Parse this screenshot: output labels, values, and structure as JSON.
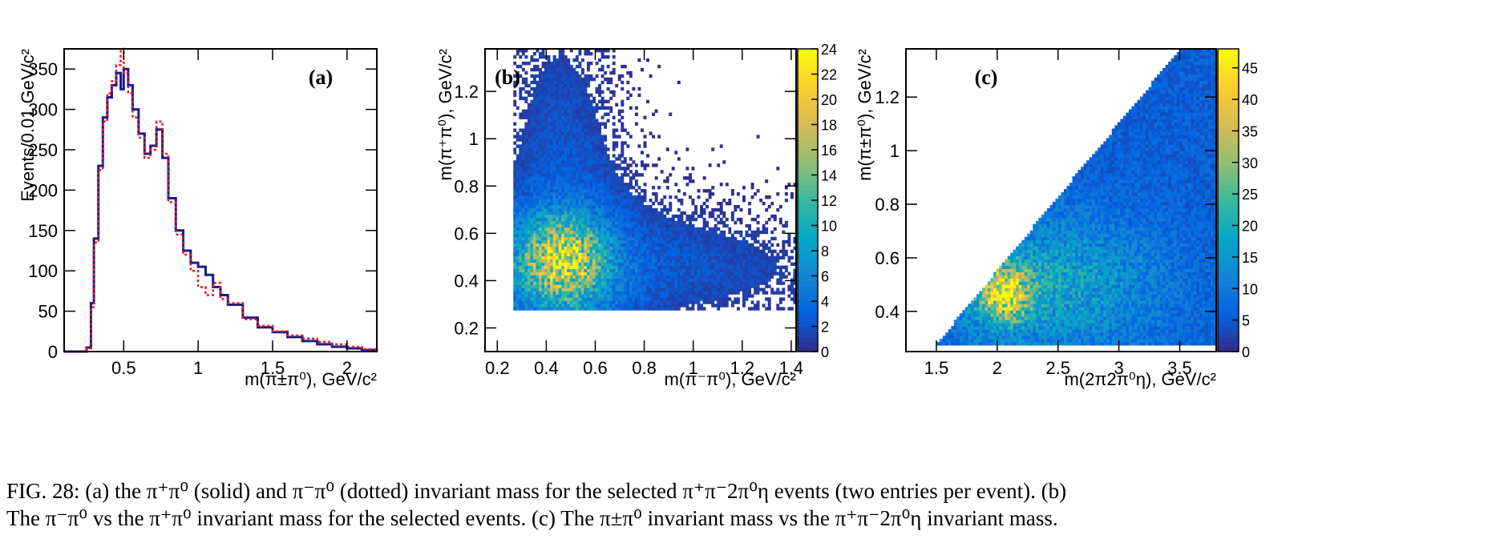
{
  "chart_data": [
    {
      "type": "line",
      "panel_label": "(a)",
      "ylabel": "Events/0.01 GeV/c²",
      "xlabel": "m(π±π⁰), GeV/c²",
      "xlim": [
        0.1,
        2.2
      ],
      "ylim": [
        0,
        375
      ],
      "xticks": [
        0.5,
        1,
        1.5,
        2
      ],
      "xtick_labels": [
        "0.5",
        "1",
        "1.5",
        "2"
      ],
      "yticks": [
        0,
        50,
        100,
        150,
        200,
        250,
        300,
        350
      ],
      "ytick_labels": [
        "0",
        "50",
        "100",
        "150",
        "200",
        "250",
        "300",
        "350"
      ],
      "series": [
        {
          "color": "#1a1a8c",
          "style": "solid step",
          "x": [
            0.1,
            0.2,
            0.25,
            0.28,
            0.3,
            0.33,
            0.36,
            0.39,
            0.42,
            0.45,
            0.48,
            0.5,
            0.53,
            0.56,
            0.6,
            0.64,
            0.68,
            0.72,
            0.76,
            0.8,
            0.85,
            0.9,
            0.95,
            1.0,
            1.05,
            1.1,
            1.15,
            1.2,
            1.3,
            1.4,
            1.5,
            1.6,
            1.7,
            1.8,
            1.9,
            2.0,
            2.1,
            2.2
          ],
          "y": [
            0,
            0,
            5,
            60,
            140,
            230,
            290,
            315,
            330,
            345,
            325,
            350,
            330,
            300,
            270,
            245,
            255,
            275,
            240,
            190,
            150,
            125,
            110,
            105,
            95,
            80,
            70,
            58,
            42,
            30,
            24,
            18,
            13,
            9,
            6,
            4,
            2,
            1
          ]
        },
        {
          "color": "#e8141c",
          "style": "dotted step",
          "x": [
            0.1,
            0.2,
            0.25,
            0.28,
            0.3,
            0.33,
            0.36,
            0.39,
            0.42,
            0.45,
            0.48,
            0.5,
            0.53,
            0.56,
            0.6,
            0.64,
            0.68,
            0.72,
            0.76,
            0.8,
            0.85,
            0.9,
            0.95,
            1.0,
            1.05,
            1.1,
            1.15,
            1.2,
            1.3,
            1.4,
            1.5,
            1.6,
            1.7,
            1.8,
            1.9,
            2.0,
            2.1,
            2.2
          ],
          "y": [
            0,
            0,
            4,
            55,
            135,
            225,
            285,
            320,
            335,
            355,
            375,
            345,
            320,
            290,
            265,
            240,
            250,
            285,
            245,
            185,
            145,
            120,
            100,
            80,
            70,
            85,
            65,
            60,
            40,
            32,
            25,
            20,
            16,
            12,
            9,
            6,
            3,
            2
          ]
        }
      ]
    },
    {
      "type": "heatmap",
      "panel_label": "(b)",
      "xlabel": "m(π⁻π⁰), GeV/c²",
      "ylabel": "m(π⁺π⁰), GeV/c²",
      "xlim": [
        0.15,
        1.42
      ],
      "ylim": [
        0.1,
        1.38
      ],
      "xticks": [
        0.2,
        0.4,
        0.6,
        0.8,
        1,
        1.2,
        1.4
      ],
      "xtick_labels": [
        "0.2",
        "0.4",
        "0.6",
        "0.8",
        "1",
        "1.2",
        "1.4"
      ],
      "yticks": [
        0.2,
        0.4,
        0.6,
        0.8,
        1,
        1.2
      ],
      "ytick_labels": [
        "0.2",
        "0.4",
        "0.6",
        "0.8",
        "1",
        "1.2"
      ],
      "z_range": [
        0,
        24
      ],
      "colorbar_ticks": [
        0,
        2,
        4,
        6,
        8,
        10,
        12,
        14,
        16,
        18,
        20,
        22,
        24
      ],
      "colorbar_tick_labels": [
        "0",
        "2",
        "4",
        "6",
        "8",
        "10",
        "12",
        "14",
        "16",
        "18",
        "20",
        "22",
        "24"
      ],
      "peak": {
        "x": 0.48,
        "y": 0.5,
        "z": 18
      },
      "region": {
        "x_min": 0.26,
        "y_min": 0.27
      }
    },
    {
      "type": "heatmap",
      "panel_label": "(c)",
      "xlabel": "m(2π2π⁰η), GeV/c²",
      "ylabel": "m(π±π⁰), GeV/c²",
      "xlim": [
        1.25,
        3.8
      ],
      "ylim": [
        0.25,
        1.38
      ],
      "xticks": [
        1.5,
        2,
        2.5,
        3,
        3.5
      ],
      "xtick_labels": [
        "1.5",
        "2",
        "2.5",
        "3",
        "3.5"
      ],
      "yticks": [
        0.4,
        0.6,
        0.8,
        1,
        1.2
      ],
      "ytick_labels": [
        "0.4",
        "0.6",
        "0.8",
        "1",
        "1.2"
      ],
      "z_range": [
        0,
        48
      ],
      "colorbar_ticks": [
        0,
        5,
        10,
        15,
        20,
        25,
        30,
        35,
        40,
        45
      ],
      "colorbar_tick_labels": [
        "0",
        "5",
        "10",
        "15",
        "20",
        "25",
        "30",
        "35",
        "40",
        "45"
      ],
      "peak": {
        "x": 2.05,
        "y": 0.47,
        "z": 40
      },
      "region": {
        "x_min": 1.45,
        "y_min": 0.27
      }
    }
  ],
  "caption": {
    "line1": "FIG. 28:  (a) the π⁺π⁰ (solid) and π⁻π⁰ (dotted) invariant mass for the selected π⁺π⁻2π⁰η events (two entries per event). (b)",
    "line2": "The π⁻π⁰ vs the π⁺π⁰ invariant mass for the selected events. (c) The π±π⁰ invariant mass vs the π⁺π⁻2π⁰η invariant mass."
  },
  "colors": {
    "solid": "#1a1a8c",
    "dotted": "#e8141c",
    "palette": [
      "#352a87",
      "#0363e1",
      "#1485d4",
      "#06a7c6",
      "#38b99e",
      "#92bf73",
      "#d9ba56",
      "#fcce2e",
      "#f9fb0e"
    ]
  }
}
